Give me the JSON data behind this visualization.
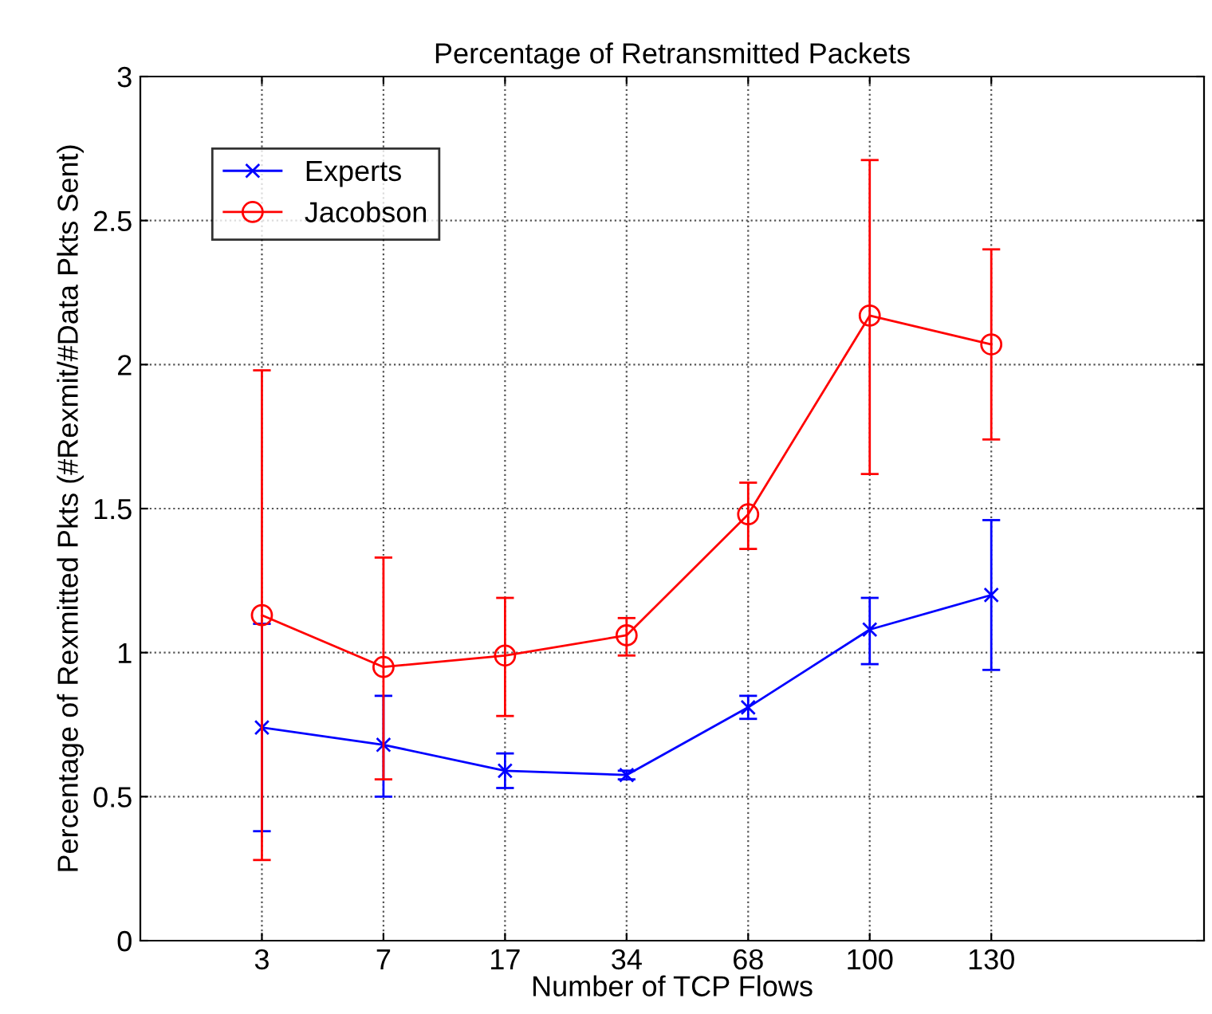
{
  "chart_data": {
    "type": "line",
    "title": "Percentage of Retransmitted Packets",
    "xlabel": "Number of TCP Flows",
    "ylabel": "Percentage of Rexmitted Pkts (#Rexmit/#Data Pkts Sent)",
    "categories": [
      "3",
      "7",
      "17",
      "34",
      "68",
      "100",
      "130"
    ],
    "series": [
      {
        "name": "Experts",
        "color": "#0000ff",
        "marker": "cross",
        "values": [
          0.74,
          0.68,
          0.59,
          0.575,
          0.81,
          1.08,
          1.2
        ],
        "errors": [
          [
            0.38,
            1.1
          ],
          [
            0.5,
            0.85
          ],
          [
            0.53,
            0.65
          ],
          [
            0.56,
            0.59
          ],
          [
            0.77,
            0.85
          ],
          [
            0.96,
            1.19
          ],
          [
            0.94,
            1.46
          ]
        ]
      },
      {
        "name": "Jacobson",
        "color": "#ff0000",
        "marker": "circle",
        "values": [
          1.13,
          0.95,
          0.99,
          1.06,
          1.48,
          2.17,
          2.07
        ],
        "errors": [
          [
            0.28,
            1.98
          ],
          [
            0.56,
            1.33
          ],
          [
            0.78,
            1.19
          ],
          [
            0.99,
            1.12
          ],
          [
            1.36,
            1.59
          ],
          [
            1.62,
            2.71
          ],
          [
            1.74,
            2.4
          ]
        ]
      }
    ],
    "ylim": [
      0,
      3
    ],
    "yticks": [
      0,
      0.5,
      1,
      1.5,
      2,
      2.5,
      3
    ],
    "grid": true,
    "legend": "top left",
    "line_style": "solid"
  }
}
